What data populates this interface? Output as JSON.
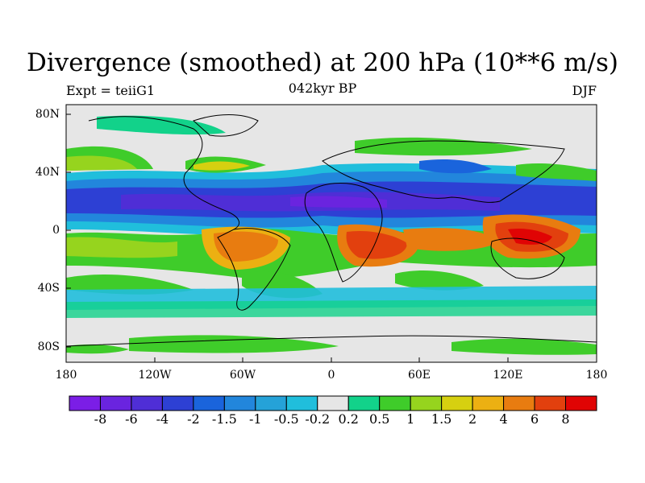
{
  "title": "Divergence (smoothed) at 200 hPa (10**6 m/s)",
  "subtitle_left": "Expt = teiiG1",
  "subtitle_center": "042kyr BP",
  "subtitle_right": "DJF",
  "lat_ticks": [
    "80N",
    "40N",
    "0",
    "40S",
    "80S"
  ],
  "lon_ticks": [
    "180",
    "120W",
    "60W",
    "0",
    "60E",
    "120E",
    "180"
  ],
  "colorbar": {
    "colors": [
      "#7b1ee6",
      "#6a24df",
      "#4f2ed6",
      "#2d40d4",
      "#1a64dc",
      "#2286dc",
      "#25a2d8",
      "#20bedc",
      "#e6e6e6",
      "#12d28a",
      "#3fcc2a",
      "#96d41e",
      "#d6d010",
      "#ecb012",
      "#e87c10",
      "#e2400e",
      "#e00404"
    ],
    "labels": [
      "-8",
      "-6",
      "-4",
      "-2",
      "-1.5",
      "-1",
      "-0.5",
      "-0.2",
      "0.2",
      "0.5",
      "1",
      "1.5",
      "2",
      "4",
      "6",
      "8"
    ]
  },
  "chart_data": {
    "type": "heatmap",
    "title": "Divergence (smoothed) at 200 hPa (10**6 m/s)",
    "variable": "Divergence (smoothed) at 200 hPa",
    "units": "10**6 m/s",
    "xlim": [
      -180,
      180
    ],
    "ylim": [
      -90,
      90
    ],
    "levels": [
      -8,
      -6,
      -4,
      -2,
      -1.5,
      -1,
      -0.5,
      -0.2,
      0.2,
      0.5,
      1,
      1.5,
      2,
      4,
      6,
      8
    ],
    "features": [
      {
        "lon": -120,
        "lat": 22,
        "value": -5
      },
      {
        "lon": -60,
        "lat": 22,
        "value": -4
      },
      {
        "lon": 0,
        "lat": 20,
        "value": -6
      },
      {
        "lon": 60,
        "lat": 22,
        "value": -5
      },
      {
        "lon": 120,
        "lat": 25,
        "value": -3
      },
      {
        "lon": 160,
        "lat": 25,
        "value": -4
      },
      {
        "lon": -60,
        "lat": -10,
        "value": 5
      },
      {
        "lon": 20,
        "lat": -10,
        "value": 6
      },
      {
        "lon": 70,
        "lat": -5,
        "value": 5
      },
      {
        "lon": 130,
        "lat": -5,
        "value": 7
      },
      {
        "lon": -165,
        "lat": -10,
        "value": 3
      },
      {
        "lon": -100,
        "lat": -25,
        "value": 1
      },
      {
        "lon": 20,
        "lat": -55,
        "value": -1
      },
      {
        "lon": 100,
        "lat": -50,
        "value": -1
      },
      {
        "lon": -140,
        "lat": 50,
        "value": 1
      },
      {
        "lon": 100,
        "lat": 50,
        "value": 1
      },
      {
        "lon": 30,
        "lat": 40,
        "value": -1
      },
      {
        "lon": -30,
        "lat": 40,
        "value": 1
      }
    ]
  }
}
